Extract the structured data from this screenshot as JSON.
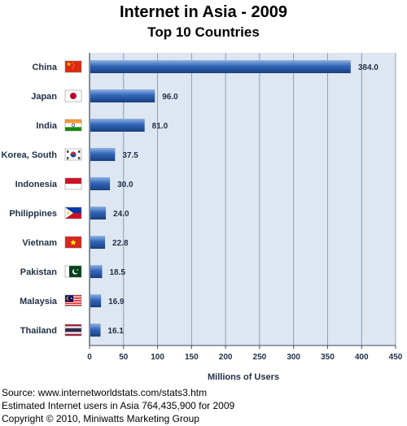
{
  "chart_data": {
    "type": "bar",
    "orientation": "horizontal",
    "title": "Internet in Asia - 2009",
    "subtitle": "Top 10 Countries",
    "xlabel": "Millions of Users",
    "ylabel": "",
    "xlim": [
      0,
      450
    ],
    "xticks": [
      "0",
      "50",
      "100",
      "150",
      "200",
      "250",
      "300",
      "350",
      "400",
      "450"
    ],
    "grid": true,
    "categories": [
      "China",
      "Japan",
      "India",
      "Korea, South",
      "Indonesia",
      "Philippines",
      "Vietnam",
      "Pakistan",
      "Malaysia",
      "Thailand"
    ],
    "values": [
      384.0,
      96.0,
      81.0,
      37.5,
      30.0,
      24.0,
      22.8,
      18.5,
      16.9,
      16.1
    ],
    "value_labels": [
      "384.0",
      "96.0",
      "81.0",
      "37.5",
      "30.0",
      "24.0",
      "22.8",
      "18.5",
      "16.9",
      "16.1"
    ],
    "flag_icons": [
      "china-flag-icon",
      "japan-flag-icon",
      "india-flag-icon",
      "south-korea-flag-icon",
      "indonesia-flag-icon",
      "philippines-flag-icon",
      "vietnam-flag-icon",
      "pakistan-flag-icon",
      "malaysia-flag-icon",
      "thailand-flag-icon"
    ],
    "colors": {
      "plot_background": "#dde6f1",
      "gridline": "#6f90bd",
      "bar_top": "#8fb2e3",
      "bar_mid": "#3366b8",
      "bar_bottom": "#183f80",
      "text": "#1f2f45"
    }
  },
  "footer": {
    "source": "Source: www.internetworldstats.com/stats3.htm",
    "estimate": "Estimated Internet users in Asia 764,435,900 for 2009",
    "copyright": "Copyright © 2010, Miniwatts Marketing Group"
  }
}
